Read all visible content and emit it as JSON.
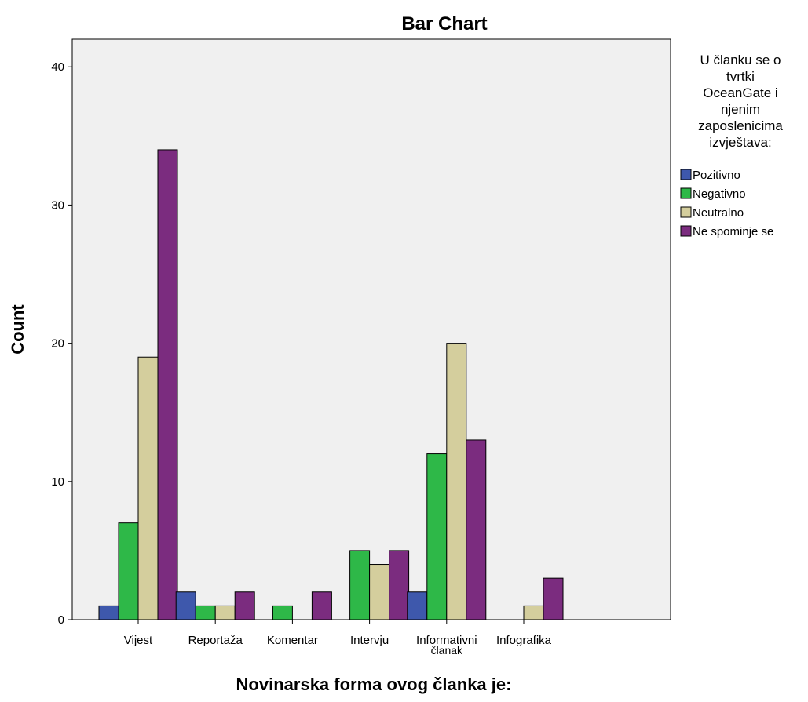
{
  "chart_data": {
    "type": "bar",
    "title": "Bar Chart",
    "xlabel": "Novinarska forma ovog članka je:",
    "ylabel": "Count",
    "ylim": [
      0,
      42
    ],
    "yticks": [
      0,
      10,
      20,
      30,
      40
    ],
    "grid": false,
    "legend_position": "right",
    "legend_title": [
      "U članku se o",
      "tvrtki",
      "OceanGate i",
      "njenim",
      "zaposlenicima",
      "izvještava:"
    ],
    "categories": [
      [
        "Vijest"
      ],
      [
        "Reportaža"
      ],
      [
        "Komentar"
      ],
      [
        "Intervju"
      ],
      [
        "Informativni",
        "članak"
      ],
      [
        "Infografika"
      ]
    ],
    "series": [
      {
        "name": "Pozitivno",
        "color": "#3e58ac",
        "values": [
          1,
          2,
          0,
          0,
          2,
          0
        ]
      },
      {
        "name": "Negativno",
        "color": "#2eb848",
        "values": [
          7,
          1,
          1,
          5,
          12,
          0
        ]
      },
      {
        "name": "Neutralno",
        "color": "#d4ce9d",
        "values": [
          19,
          1,
          0,
          4,
          20,
          1
        ]
      },
      {
        "name": "Ne spominje se",
        "color": "#7b2c7f",
        "values": [
          34,
          2,
          2,
          5,
          13,
          3
        ]
      }
    ],
    "plot_background": "#f0f0f0"
  }
}
